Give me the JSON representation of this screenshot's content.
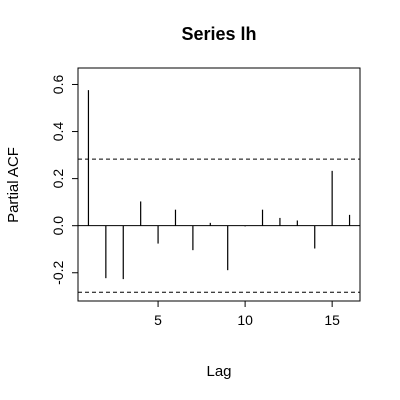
{
  "chart_data": {
    "type": "bar",
    "title": "Series  lh",
    "xlabel": "Lag",
    "ylabel": "Partial ACF",
    "x": [
      1,
      2,
      3,
      4,
      5,
      6,
      7,
      8,
      9,
      10,
      11,
      12,
      13,
      14,
      15,
      16
    ],
    "values": [
      0.576,
      -0.223,
      -0.227,
      0.103,
      -0.076,
      0.068,
      -0.104,
      0.012,
      -0.189,
      -0.003,
      0.068,
      0.033,
      0.022,
      -0.097,
      0.233,
      0.046
    ],
    "xlim": [
      0.4,
      16.6
    ],
    "ylim": [
      -0.32,
      0.67
    ],
    "x_ticks": [
      5,
      10,
      15
    ],
    "y_ticks": [
      -0.2,
      0.0,
      0.2,
      0.4,
      0.6
    ],
    "x_tick_labels": [
      "5",
      "10",
      "15"
    ],
    "y_tick_labels": [
      "-0.2",
      "0.0",
      "0.2",
      "0.4",
      "0.6"
    ],
    "zero_line": 0,
    "confidence_bounds": [
      0.283,
      -0.283
    ],
    "grid": false,
    "colors": {
      "bars": "#000000",
      "bounds": "#000000",
      "background": "#ffffff"
    }
  }
}
